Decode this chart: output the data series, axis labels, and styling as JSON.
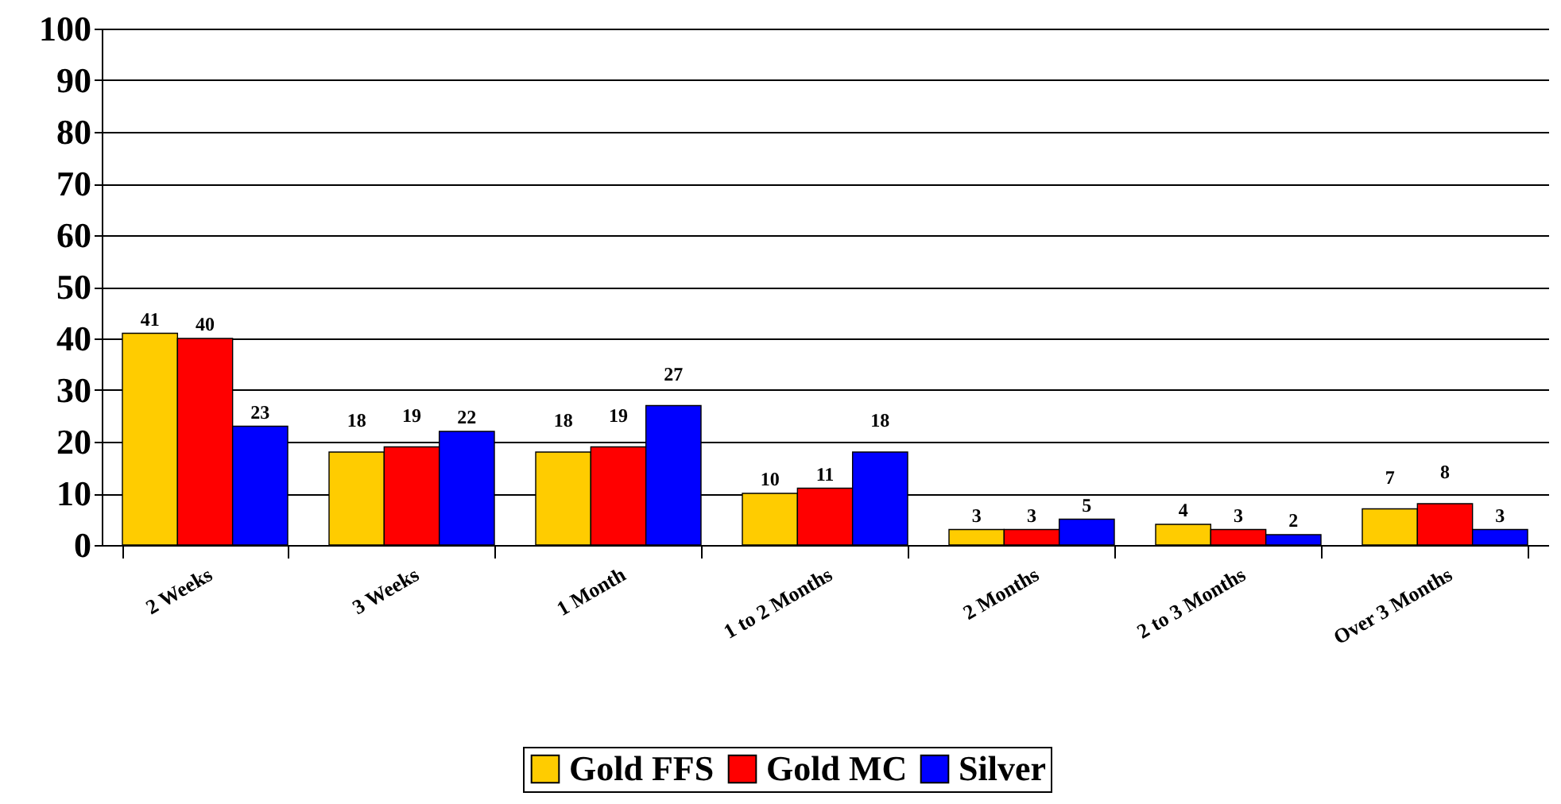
{
  "chart_data": {
    "type": "bar",
    "categories": [
      "2 Weeks",
      "3 Weeks",
      "1 Month",
      "1 to 2 Months",
      "2 Months",
      "2 to 3 Months",
      "Over 3 Months"
    ],
    "series": [
      {
        "name": "Gold FFS",
        "color": "#ffcc00",
        "values": [
          41,
          18,
          18,
          10,
          3,
          4,
          7
        ]
      },
      {
        "name": "Gold MC",
        "color": "#ff0000",
        "values": [
          40,
          19,
          19,
          11,
          3,
          3,
          8
        ]
      },
      {
        "name": "Silver",
        "color": "#0000ff",
        "values": [
          23,
          22,
          27,
          18,
          5,
          2,
          3
        ]
      }
    ],
    "ylim": [
      0,
      100
    ],
    "yticks": [
      0,
      10,
      20,
      30,
      40,
      50,
      60,
      70,
      80,
      90,
      100
    ],
    "grid": "y",
    "legend": "bottom",
    "data_labels": true
  }
}
